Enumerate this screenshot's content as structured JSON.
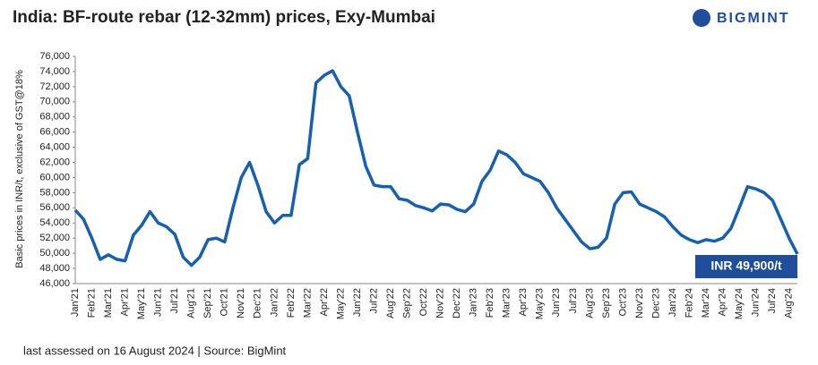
{
  "chart_data": {
    "type": "line",
    "title": "India: BF-route rebar (12-32mm) prices, Exy-Mumbai",
    "brand": "BIGMINT",
    "ylabel": "Basic prices in INR/t,  exclusive of GST@18%",
    "annotation": "INR 49,900/t",
    "footer": "last assessed on 16 August 2024 | Source: BigMint",
    "categories": [
      "Jan'21",
      null,
      "Feb'21",
      null,
      "Mar'21",
      null,
      "Apr'21",
      null,
      "May'21",
      null,
      "Jun'21",
      null,
      "Jul'21",
      null,
      "Aug'21",
      null,
      "Sep'21",
      null,
      "Oct'21",
      null,
      "Nov'21",
      null,
      "Dec'21",
      null,
      "Jan'22",
      null,
      "Feb'22",
      null,
      "Mar'22",
      null,
      "Apr'22",
      null,
      "May'22",
      null,
      "Jun'22",
      null,
      "Jul'22",
      null,
      "Aug'22",
      null,
      "Sep'22",
      null,
      "Oct'22",
      null,
      "Nov'22",
      null,
      "Dec'22",
      null,
      "Jan'23",
      null,
      "Feb'23",
      null,
      "Mar'23",
      null,
      "Apr'23",
      null,
      "May'23",
      null,
      "Jun'23",
      null,
      "Jul'23",
      null,
      "Aug'23",
      null,
      "Sep'23",
      null,
      "Oct'23",
      null,
      "Nov'23",
      null,
      "Dec'23",
      null,
      "Jan'24",
      null,
      "Feb'24",
      null,
      "Mar'24",
      null,
      "Apr'24",
      null,
      "May'24",
      null,
      "Jun'24",
      null,
      "Jul'24",
      null,
      "Aug'24",
      null
    ],
    "series": [
      {
        "name": "Exy-Mumbai",
        "color": "#1560b0",
        "values": [
          55700,
          54500,
          52000,
          49200,
          49800,
          49200,
          49000,
          52400,
          53700,
          55500,
          54000,
          53500,
          52500,
          49500,
          48400,
          49500,
          51800,
          52000,
          51500,
          56000,
          60000,
          62000,
          59000,
          55500,
          54000,
          55000,
          55000,
          61700,
          62500,
          72500,
          73500,
          74100,
          72000,
          70800,
          66000,
          61500,
          59000,
          58800,
          58800,
          57200,
          57000,
          56300,
          56000,
          55600,
          56500,
          56400,
          55800,
          55500,
          56500,
          59500,
          61000,
          63500,
          63000,
          62000,
          60500,
          60000,
          59500,
          58000,
          56000,
          54500,
          53000,
          51500,
          50600,
          50800,
          52000,
          56500,
          58000,
          58100,
          56500,
          56000,
          55500,
          54800,
          53500,
          52400,
          51800,
          51400,
          51800,
          51600,
          52000,
          53300,
          56000,
          58800,
          58500,
          58000,
          57000,
          54500,
          52000,
          49900
        ]
      }
    ],
    "ylim": [
      46000,
      76000
    ],
    "yticks": [
      {
        "value": 46000,
        "label": "46,000"
      },
      {
        "value": 48000,
        "label": "48,000"
      },
      {
        "value": 50000,
        "label": "50,000"
      },
      {
        "value": 52000,
        "label": "52,000"
      },
      {
        "value": 54000,
        "label": "54,000"
      },
      {
        "value": 56000,
        "label": "56,000"
      },
      {
        "value": 58000,
        "label": "58,000"
      },
      {
        "value": 60000,
        "label": "60,000"
      },
      {
        "value": 62000,
        "label": "62,000"
      },
      {
        "value": 64000,
        "label": "64,000"
      },
      {
        "value": 66000,
        "label": "66,000"
      },
      {
        "value": 68000,
        "label": "68,000"
      },
      {
        "value": 70000,
        "label": "70,000"
      },
      {
        "value": 72000,
        "label": "72,000"
      },
      {
        "value": 74000,
        "label": "74,000"
      },
      {
        "value": 76000,
        "label": "76,000"
      }
    ],
    "grid": false
  }
}
